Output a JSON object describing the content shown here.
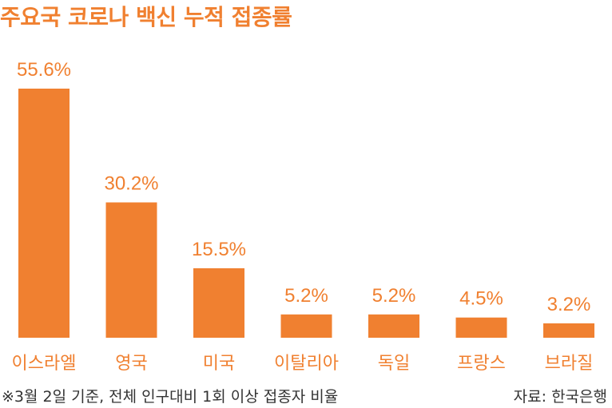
{
  "title": "주요국 코로나 백신 누적 접종률",
  "footnote": "※3월 2일 기준, 전체 인구대비 1회 이상 접종자 비율",
  "source": "자료: 한국은행",
  "colors": {
    "bar": "#F08030",
    "text": "#333333"
  },
  "chart_data": {
    "type": "bar",
    "title": "주요국 코로나 백신 누적 접종률",
    "categories": [
      "이스라엘",
      "영국",
      "미국",
      "이탈리아",
      "독일",
      "프랑스",
      "브라질"
    ],
    "values": [
      55.6,
      30.2,
      15.5,
      5.2,
      5.2,
      4.5,
      3.2
    ],
    "value_labels": [
      "55.6%",
      "30.2%",
      "15.5%",
      "5.2%",
      "5.2%",
      "4.5%",
      "3.2%"
    ],
    "xlabel": "",
    "ylabel": "",
    "ylim": [
      0,
      55.6
    ],
    "grid": false,
    "legend": "none"
  }
}
